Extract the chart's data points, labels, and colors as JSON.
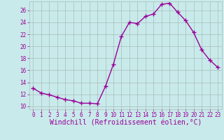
{
  "x": [
    0,
    1,
    2,
    3,
    4,
    5,
    6,
    7,
    8,
    9,
    10,
    11,
    12,
    13,
    14,
    15,
    16,
    17,
    18,
    19,
    20,
    21,
    22,
    23
  ],
  "y": [
    13.0,
    12.2,
    11.9,
    11.5,
    11.1,
    10.9,
    10.5,
    10.5,
    10.4,
    13.3,
    17.0,
    21.7,
    24.0,
    23.8,
    25.0,
    25.4,
    27.0,
    27.2,
    25.7,
    24.3,
    22.3,
    19.4,
    17.7,
    16.5
  ],
  "line_color": "#990099",
  "marker": "+",
  "markersize": 4,
  "linewidth": 1.0,
  "bg_color": "#c8eaea",
  "grid_color": "#aabbbb",
  "xlabel": "Windchill (Refroidissement éolien,°C)",
  "xlim": [
    -0.5,
    23.5
  ],
  "ylim": [
    9.5,
    27.5
  ],
  "yticks": [
    10,
    12,
    14,
    16,
    18,
    20,
    22,
    24,
    26
  ],
  "xticks": [
    0,
    1,
    2,
    3,
    4,
    5,
    6,
    7,
    8,
    9,
    10,
    11,
    12,
    13,
    14,
    15,
    16,
    17,
    18,
    19,
    20,
    21,
    22,
    23
  ],
  "tick_label_color": "#990099",
  "tick_fontsize": 5.5,
  "xlabel_fontsize": 7.0
}
